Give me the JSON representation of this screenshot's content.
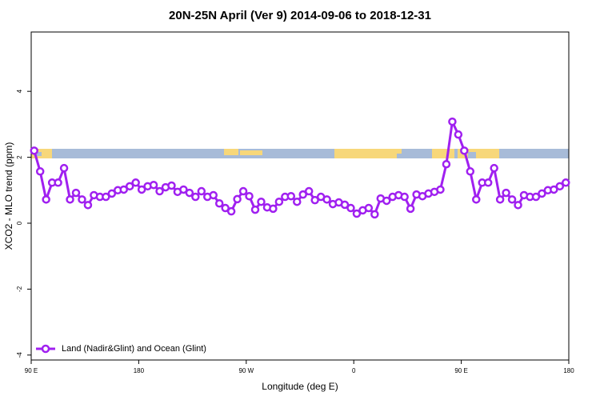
{
  "chart_data": {
    "type": "line",
    "title": "20N-25N April (Ver 9)   2014-09-06 to 2018-12-31",
    "xlabel": "Longitude (deg E)",
    "ylabel": "XCO2 - MLO trend (ppm)",
    "x": [
      92.5,
      97.5,
      102.5,
      107.5,
      112.5,
      117.5,
      122.5,
      127.5,
      132.5,
      137.5,
      142.5,
      147.5,
      152.5,
      157.5,
      162.5,
      167.5,
      172.5,
      177.5,
      182.5,
      187.5,
      192.5,
      197.5,
      202.5,
      207.5,
      212.5,
      217.5,
      222.5,
      227.5,
      232.5,
      237.5,
      242.5,
      247.5,
      252.5,
      257.5,
      262.5,
      267.5,
      272.5,
      277.5,
      282.5,
      287.5,
      292.5,
      297.5,
      302.5,
      307.5,
      312.5,
      317.5,
      322.5,
      327.5,
      332.5,
      337.5,
      342.5,
      347.5,
      352.5,
      357.5,
      362.5,
      367.5,
      372.5,
      377.5,
      382.5,
      387.5,
      392.5,
      397.5,
      402.5,
      407.5,
      412.5,
      417.5,
      422.5,
      427.5,
      432.5,
      437.5,
      442.5,
      447.5,
      452.5,
      457.5,
      462.5,
      467.5,
      472.5,
      477.5,
      482.5,
      487.5,
      492.5,
      497.5,
      502.5,
      507.5,
      512.5,
      517.5,
      522.5,
      527.5,
      532.5,
      537.5
    ],
    "series": [
      {
        "name": "Land (Nadir&Glint) and Ocean (Glint)",
        "color": "#a020f0",
        "values": [
          2.2,
          1.57,
          0.72,
          1.23,
          1.23,
          1.67,
          0.72,
          0.92,
          0.72,
          0.55,
          0.85,
          0.8,
          0.8,
          0.9,
          1.0,
          1.02,
          1.12,
          1.23,
          1.02,
          1.12,
          1.16,
          0.97,
          1.09,
          1.14,
          0.95,
          1.02,
          0.92,
          0.8,
          0.97,
          0.8,
          0.85,
          0.6,
          0.46,
          0.36,
          0.73,
          0.97,
          0.82,
          0.41,
          0.65,
          0.48,
          0.44,
          0.65,
          0.8,
          0.82,
          0.65,
          0.87,
          0.97,
          0.7,
          0.8,
          0.72,
          0.58,
          0.63,
          0.56,
          0.46,
          0.29,
          0.39,
          0.46,
          0.27,
          0.75,
          0.68,
          0.8,
          0.85,
          0.8,
          0.44,
          0.87,
          0.82,
          0.9,
          0.95,
          1.02,
          1.79,
          3.08,
          2.69,
          2.2,
          1.57,
          0.72,
          1.23,
          1.23,
          1.67,
          0.72,
          0.92,
          0.72,
          0.55,
          0.85,
          0.8,
          0.8,
          0.9,
          1.0,
          1.02,
          1.12,
          1.23
        ]
      }
    ],
    "xlim": [
      90,
      540
    ],
    "xticks": [
      {
        "value": 90,
        "label": "90 E"
      },
      180,
      {
        "value": 270,
        "label": "90 W"
      },
      {
        "value": 360,
        "label": "0"
      },
      {
        "value": 450,
        "label": "90 E"
      },
      {
        "value": 540,
        "label": "180"
      }
    ],
    "ylim": [
      -4.15,
      5.8
    ],
    "yticks": [
      -4,
      -2,
      0,
      2,
      4
    ],
    "legend": "bottom-left"
  }
}
